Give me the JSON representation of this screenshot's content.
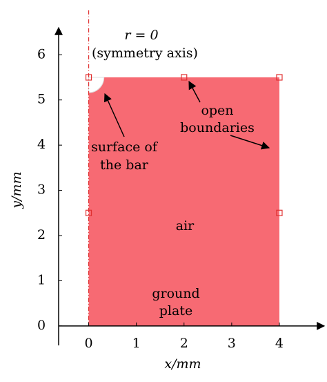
{
  "axes": {
    "xlabel": "x/mm",
    "ylabel": "y/mm",
    "xlim": [
      -0.63,
      4.97
    ],
    "ylim": [
      -0.43,
      6.6
    ],
    "xticks": [
      0,
      1,
      2,
      3,
      4
    ],
    "yticks": [
      0,
      1,
      2,
      3,
      4,
      5,
      6
    ]
  },
  "domain": {
    "x": [
      0,
      4
    ],
    "y": [
      0,
      5.5
    ],
    "bar_radius": 0.32,
    "color": "#f76a73",
    "markers": [
      [
        0,
        5.5
      ],
      [
        2,
        5.5
      ],
      [
        4,
        5.5
      ],
      [
        0,
        2.5
      ],
      [
        4,
        2.5
      ]
    ]
  },
  "labels": {
    "axis_name": "r = 0",
    "axis_note": "(symmetry axis)",
    "bar_1": "surface of",
    "bar_2": "the bar",
    "open_1": "open",
    "open_2": "boundaries",
    "air": "air",
    "ground_1": "ground",
    "ground_2": "plate"
  }
}
